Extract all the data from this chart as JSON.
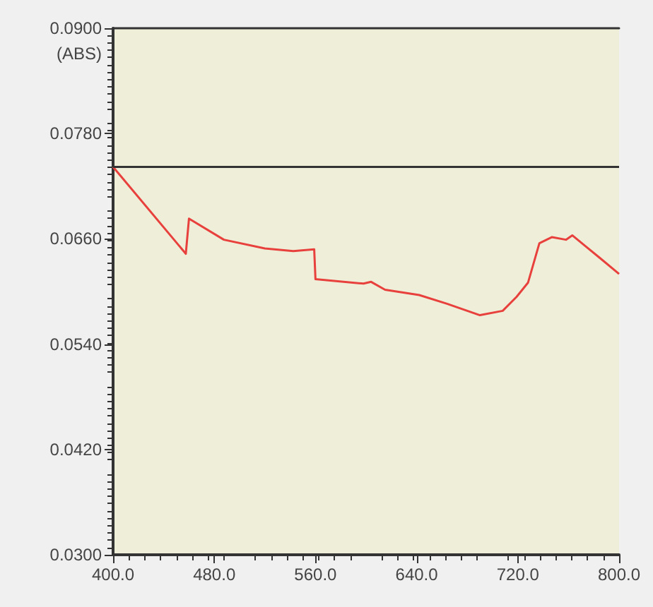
{
  "chart_data": {
    "type": "line",
    "ylabel": "(ABS)",
    "x": [
      400,
      457.5,
      460,
      487.6,
      520,
      542.5,
      559,
      560,
      598,
      604,
      615,
      642,
      664,
      690,
      708,
      719,
      728,
      737,
      747,
      758,
      763,
      774,
      785,
      800
    ],
    "series": [
      {
        "color": "#e8403c",
        "values": [
          0.0742,
          0.0643,
          0.0683,
          0.0659,
          0.0649,
          0.0646,
          0.0648,
          0.0614,
          0.0609,
          0.0611,
          0.0602,
          0.0596,
          0.0586,
          0.0573,
          0.0578,
          0.0594,
          0.061,
          0.0655,
          0.0662,
          0.0659,
          0.0664,
          0.0651,
          0.0638,
          0.062
        ]
      }
    ],
    "xlim": [
      400,
      800
    ],
    "xticks": [
      {
        "value": 400,
        "label": "400.0"
      },
      {
        "value": 480,
        "label": "480.0"
      },
      {
        "value": 560,
        "label": "560.0"
      },
      {
        "value": 640,
        "label": "640.0"
      },
      {
        "value": 720,
        "label": "720.0"
      },
      {
        "value": 800,
        "label": "800.0"
      }
    ],
    "ylim": [
      0.03,
      0.09
    ],
    "yticks": [
      {
        "value": 0.03,
        "label": "0.0300"
      },
      {
        "value": 0.042,
        "label": "0.0420"
      },
      {
        "value": 0.054,
        "label": "0.0540"
      },
      {
        "value": 0.066,
        "label": "0.0660"
      },
      {
        "value": 0.078,
        "label": "0.0780"
      },
      {
        "value": 0.09,
        "label": "0.0900"
      }
    ],
    "ref_lines": [
      {
        "axis": "y",
        "value": 0.0742,
        "color": "#333333"
      }
    ],
    "grid": false,
    "marker": "none",
    "line_style": "solid"
  }
}
